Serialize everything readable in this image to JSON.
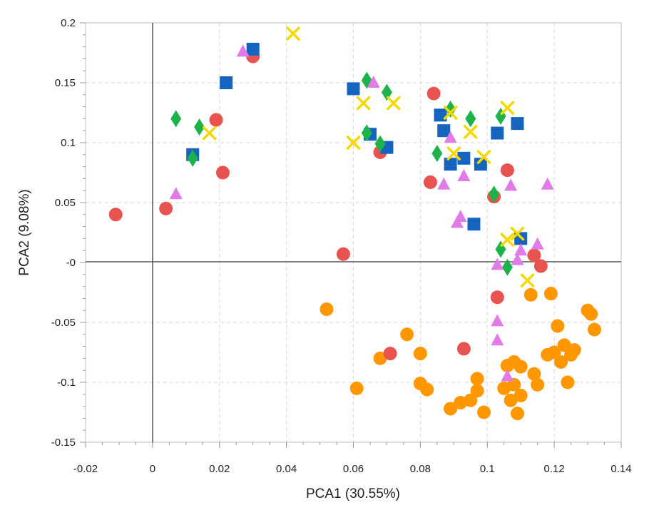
{
  "chart_data": {
    "type": "scatter",
    "title": "",
    "xlabel": "PCA1 (30.55%)",
    "ylabel": "PCA2 (9.08%)",
    "xlim": [
      -0.02,
      0.14
    ],
    "ylim": [
      -0.15,
      0.2
    ],
    "xticks": [
      -0.02,
      0,
      0.02,
      0.04,
      0.06,
      0.08,
      0.1,
      0.12,
      0.14
    ],
    "xtick_labels": [
      "-0.02",
      "0",
      "0.02",
      "0.04",
      "0.06",
      "0.08",
      "0.1",
      "0.12",
      "0.14"
    ],
    "yticks": [
      -0.15,
      -0.1,
      -0.05,
      0,
      0.05,
      0.1,
      0.15,
      0.2
    ],
    "ytick_labels": [
      "-0.15",
      "-0.1",
      "-0.05",
      "-0",
      "0.05",
      "0.1",
      "0.15",
      "0.2"
    ],
    "grid": true,
    "legend": "none",
    "series": [
      {
        "marker": "circle",
        "color": "#ff9800",
        "points": [
          [
            0.052,
            -0.039
          ],
          [
            0.061,
            -0.105
          ],
          [
            0.068,
            -0.08
          ],
          [
            0.076,
            -0.06
          ],
          [
            0.08,
            -0.076
          ],
          [
            0.08,
            -0.101
          ],
          [
            0.082,
            -0.106
          ],
          [
            0.089,
            -0.122
          ],
          [
            0.092,
            -0.117
          ],
          [
            0.095,
            -0.115
          ],
          [
            0.097,
            -0.097
          ],
          [
            0.097,
            -0.107
          ],
          [
            0.099,
            -0.125
          ],
          [
            0.105,
            -0.105
          ],
          [
            0.106,
            -0.086
          ],
          [
            0.107,
            -0.115
          ],
          [
            0.108,
            -0.102
          ],
          [
            0.108,
            -0.083
          ],
          [
            0.109,
            -0.126
          ],
          [
            0.11,
            -0.111
          ],
          [
            0.11,
            -0.087
          ],
          [
            0.113,
            -0.027
          ],
          [
            0.114,
            -0.093
          ],
          [
            0.115,
            -0.102
          ],
          [
            0.118,
            -0.077
          ],
          [
            0.119,
            -0.026
          ],
          [
            0.12,
            -0.075
          ],
          [
            0.121,
            -0.053
          ],
          [
            0.122,
            -0.083
          ],
          [
            0.123,
            -0.069
          ],
          [
            0.124,
            -0.1
          ],
          [
            0.125,
            -0.077
          ],
          [
            0.126,
            -0.073
          ],
          [
            0.13,
            -0.04
          ],
          [
            0.131,
            -0.043
          ],
          [
            0.132,
            -0.056
          ]
        ]
      },
      {
        "marker": "circle",
        "color": "#e8534f",
        "points": [
          [
            -0.011,
            0.04
          ],
          [
            0.004,
            0.045
          ],
          [
            0.019,
            0.119
          ],
          [
            0.021,
            0.075
          ],
          [
            0.03,
            0.172
          ],
          [
            0.057,
            0.007
          ],
          [
            0.068,
            0.092
          ],
          [
            0.071,
            -0.076
          ],
          [
            0.083,
            0.067
          ],
          [
            0.084,
            0.141
          ],
          [
            0.093,
            -0.072
          ],
          [
            0.102,
            0.055
          ],
          [
            0.103,
            -0.029
          ],
          [
            0.106,
            0.077
          ],
          [
            0.114,
            0.006
          ],
          [
            0.116,
            -0.003
          ]
        ]
      },
      {
        "marker": "square",
        "color": "#1565c0",
        "points": [
          [
            0.012,
            0.09
          ],
          [
            0.022,
            0.15
          ],
          [
            0.03,
            0.178
          ],
          [
            0.06,
            0.145
          ],
          [
            0.065,
            0.107
          ],
          [
            0.07,
            0.096
          ],
          [
            0.086,
            0.123
          ],
          [
            0.087,
            0.11
          ],
          [
            0.089,
            0.082
          ],
          [
            0.093,
            0.087
          ],
          [
            0.096,
            0.032
          ],
          [
            0.098,
            0.082
          ],
          [
            0.103,
            0.108
          ],
          [
            0.109,
            0.116
          ],
          [
            0.11,
            0.02
          ]
        ]
      },
      {
        "marker": "diamond",
        "color": "#1db34a",
        "points": [
          [
            0.007,
            0.12
          ],
          [
            0.012,
            0.087
          ],
          [
            0.014,
            0.113
          ],
          [
            0.064,
            0.152
          ],
          [
            0.064,
            0.108
          ],
          [
            0.068,
            0.099
          ],
          [
            0.07,
            0.142
          ],
          [
            0.085,
            0.091
          ],
          [
            0.089,
            0.128
          ],
          [
            0.095,
            0.12
          ],
          [
            0.102,
            0.057
          ],
          [
            0.104,
            0.011
          ],
          [
            0.104,
            0.122
          ],
          [
            0.106,
            -0.004
          ]
        ]
      },
      {
        "marker": "triangle",
        "color": "#e07be8",
        "points": [
          [
            0.007,
            0.057
          ],
          [
            0.027,
            0.176
          ],
          [
            0.066,
            0.15
          ],
          [
            0.087,
            0.065
          ],
          [
            0.089,
            0.104
          ],
          [
            0.091,
            0.033
          ],
          [
            0.092,
            0.038
          ],
          [
            0.093,
            0.072
          ],
          [
            0.103,
            -0.002
          ],
          [
            0.103,
            -0.049
          ],
          [
            0.103,
            -0.065
          ],
          [
            0.106,
            -0.095
          ],
          [
            0.107,
            0.064
          ],
          [
            0.109,
            0.002
          ],
          [
            0.11,
            0.01
          ],
          [
            0.115,
            0.015
          ],
          [
            0.118,
            0.065
          ]
        ]
      },
      {
        "marker": "x",
        "color": "#f5d800",
        "points": [
          [
            0.017,
            0.108
          ],
          [
            0.042,
            0.191
          ],
          [
            0.06,
            0.1
          ],
          [
            0.063,
            0.133
          ],
          [
            0.072,
            0.133
          ],
          [
            0.089,
            0.125
          ],
          [
            0.09,
            0.091
          ],
          [
            0.095,
            0.109
          ],
          [
            0.099,
            0.088
          ],
          [
            0.106,
            0.129
          ],
          [
            0.106,
            0.019
          ],
          [
            0.109,
            0.024
          ],
          [
            0.112,
            -0.015
          ]
        ]
      }
    ]
  }
}
